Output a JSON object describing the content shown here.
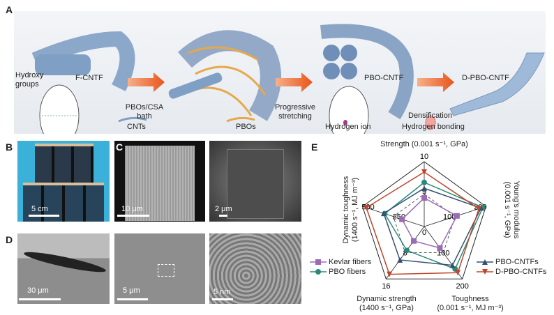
{
  "panels": {
    "A": "A",
    "B": "B",
    "C": "C",
    "D": "D",
    "E": "E"
  },
  "panelA": {
    "hydroxy": "Hydroxy groups",
    "fcntf": "F-CNTF",
    "bath": "PBOs/CSA bath",
    "stretching": "Progressive stretching",
    "pbocntf": "PBO-CNTF",
    "densification": "Densification",
    "dpbocntf": "D-PBO-CNTF",
    "legend": {
      "cnts": "CNTs",
      "pbos": "PBOs",
      "hion": "Hydrogen ion",
      "hbond": "Hydrogen bonding"
    }
  },
  "scalebars": {
    "b": "5 cm",
    "c1": "10 μm",
    "c2": "2 μm",
    "d1": "30 μm",
    "d2": "5 μm",
    "d3": "5 nm"
  },
  "chart_data": {
    "type": "radar",
    "axes": [
      {
        "label": "Strength (0.001 s⁻¹, GPa)",
        "ticks": [
          "0",
          "5",
          "10"
        ],
        "max": 10
      },
      {
        "label": "Young's modulus (0.001 s⁻¹, GPa)",
        "ticks": [
          "0",
          "100",
          "200"
        ],
        "max": 200
      },
      {
        "label": "Toughness (0.001 s⁻¹, MJ m⁻³)",
        "ticks": [
          "0",
          "100",
          "200"
        ],
        "max": 200
      },
      {
        "label": "Dynamic strength (1400 s⁻¹, GPa)",
        "ticks": [
          "0",
          "8",
          "16"
        ],
        "max": 16
      },
      {
        "label": "Dynamic toughness (1400 s⁻¹, MJ m⁻³)",
        "ticks": [
          "0",
          "250",
          "500"
        ],
        "max": 500
      }
    ],
    "axis_title_lines": {
      "strength": "Strength (0.001 s⁻¹, GPa)",
      "young1": "Young's modulus",
      "young2": "(0.001 s⁻¹, GPa)",
      "tough1": "Toughness",
      "tough2": "(0.001 s⁻¹, MJ m⁻³)",
      "dyns1": "Dynamic strength",
      "dyns2": "(1400 s⁻¹, GPa)",
      "dynt1": "Dynamic toughness",
      "dynt2": "(1400 s⁻¹, MJ m⁻³)"
    },
    "series": [
      {
        "name": "Kevlar fibers",
        "marker": "square",
        "color": "#9b6bb5",
        "values": [
          4.4,
          106,
          82,
          4.4,
          180
        ]
      },
      {
        "name": "PBO fibers",
        "marker": "circle",
        "color": "#2a8a7a",
        "values": [
          6.8,
          190,
          162,
          7.3,
          320
        ]
      },
      {
        "name": "PBO-CNTFs",
        "marker": "triangle-up",
        "color": "#34506e",
        "values": [
          5.9,
          184,
          148,
          10.2,
          328
        ]
      },
      {
        "name": "D-PBO-CNTFs",
        "marker": "triangle-down",
        "color": "#c0452a",
        "values": [
          8.4,
          177,
          176,
          14.6,
          469
        ]
      }
    ],
    "legend_placement": "bottom-left and bottom-right"
  }
}
